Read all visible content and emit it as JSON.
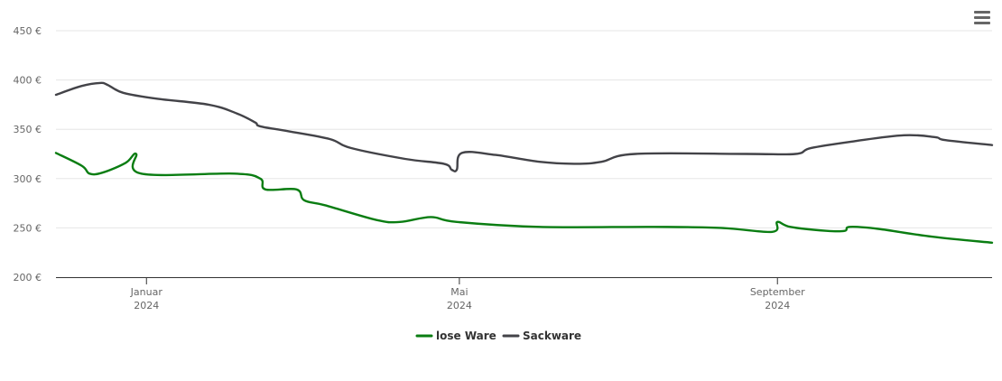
{
  "chart_data": {
    "type": "line",
    "title": "",
    "xlabel": "",
    "ylabel": "",
    "y_ticks": [
      "200 €",
      "250 €",
      "300 €",
      "350 €",
      "400 €",
      "450 €"
    ],
    "y_tick_values": [
      200,
      250,
      300,
      350,
      400,
      450
    ],
    "ylim": [
      200,
      450
    ],
    "xlim": [
      "2023-11-27",
      "2024-11-23"
    ],
    "x_ticks": [
      {
        "date": "2024-01-01",
        "month": "Januar",
        "year": "2024"
      },
      {
        "date": "2024-05-01",
        "month": "Mai",
        "year": "2024"
      },
      {
        "date": "2024-09-01",
        "month": "September",
        "year": "2024"
      }
    ],
    "grid": true,
    "legend": "bottom-center",
    "series": [
      {
        "name": "lose Ware",
        "color": "#0a7d12",
        "points": [
          [
            "2023-11-27",
            326
          ],
          [
            "2023-12-07",
            313
          ],
          [
            "2023-12-10",
            305
          ],
          [
            "2023-12-15",
            306
          ],
          [
            "2023-12-24",
            316
          ],
          [
            "2023-12-28",
            325
          ],
          [
            "2023-12-30",
            305
          ],
          [
            "2024-02-04",
            305
          ],
          [
            "2024-02-14",
            300
          ],
          [
            "2024-02-16",
            289
          ],
          [
            "2024-02-28",
            289
          ],
          [
            "2024-03-02",
            278
          ],
          [
            "2024-03-10",
            273
          ],
          [
            "2024-03-30",
            258
          ],
          [
            "2024-04-08",
            256
          ],
          [
            "2024-04-20",
            261
          ],
          [
            "2024-04-30",
            256
          ],
          [
            "2024-06-01",
            251
          ],
          [
            "2024-07-15",
            251
          ],
          [
            "2024-08-10",
            250
          ],
          [
            "2024-08-30",
            246
          ],
          [
            "2024-09-01",
            256
          ],
          [
            "2024-09-06",
            251
          ],
          [
            "2024-09-20",
            247
          ],
          [
            "2024-09-27",
            247
          ],
          [
            "2024-09-29",
            251
          ],
          [
            "2024-10-10",
            249
          ],
          [
            "2024-10-31",
            241
          ],
          [
            "2024-11-23",
            235
          ]
        ]
      },
      {
        "name": "Sackware",
        "color": "#434348",
        "points": [
          [
            "2023-11-27",
            385
          ],
          [
            "2023-12-07",
            394
          ],
          [
            "2023-12-14",
            397
          ],
          [
            "2023-12-17",
            395
          ],
          [
            "2023-12-23",
            387
          ],
          [
            "2024-01-05",
            381
          ],
          [
            "2024-01-25",
            375
          ],
          [
            "2024-02-05",
            366
          ],
          [
            "2024-02-12",
            357
          ],
          [
            "2024-02-14",
            353
          ],
          [
            "2024-02-25",
            348
          ],
          [
            "2024-03-12",
            340
          ],
          [
            "2024-03-20",
            331
          ],
          [
            "2024-04-10",
            320
          ],
          [
            "2024-04-25",
            315
          ],
          [
            "2024-04-28",
            309
          ],
          [
            "2024-04-30",
            309
          ],
          [
            "2024-05-02",
            326
          ],
          [
            "2024-05-15",
            324
          ],
          [
            "2024-06-01",
            317
          ],
          [
            "2024-06-15",
            315
          ],
          [
            "2024-06-25",
            317
          ],
          [
            "2024-07-08",
            325
          ],
          [
            "2024-08-20",
            325
          ],
          [
            "2024-09-08",
            325
          ],
          [
            "2024-09-14",
            331
          ],
          [
            "2024-10-01",
            338
          ],
          [
            "2024-10-20",
            344
          ],
          [
            "2024-11-01",
            342
          ],
          [
            "2024-11-05",
            339
          ],
          [
            "2024-11-23",
            334
          ]
        ]
      }
    ]
  }
}
